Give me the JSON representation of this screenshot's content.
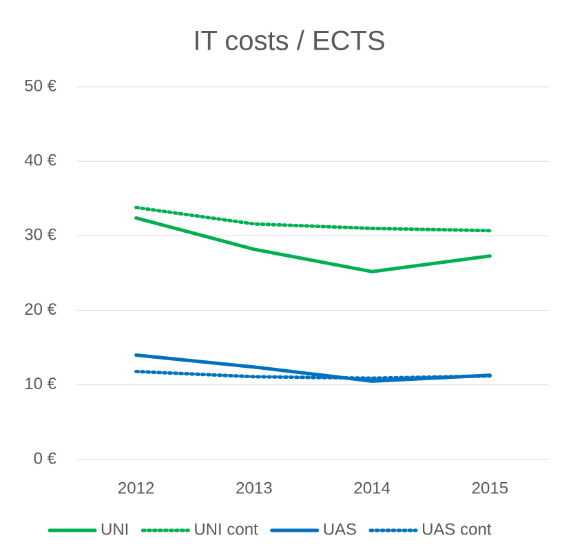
{
  "chart_data": {
    "type": "line",
    "title": "IT costs / ECTS",
    "categories": [
      "2012",
      "2013",
      "2014",
      "2015"
    ],
    "series": [
      {
        "name": "UNI",
        "color": "#00b050",
        "style": "solid",
        "values": [
          32.4,
          28.2,
          25.2,
          27.3
        ]
      },
      {
        "name": "UNI cont",
        "color": "#00b050",
        "style": "dotted",
        "values": [
          33.8,
          31.6,
          31.0,
          30.7
        ]
      },
      {
        "name": "UAS",
        "color": "#0070c0",
        "style": "solid",
        "values": [
          14.0,
          12.4,
          10.5,
          11.3
        ]
      },
      {
        "name": "UAS cont",
        "color": "#0070c0",
        "style": "dotted",
        "values": [
          11.8,
          11.1,
          10.9,
          11.2
        ]
      }
    ],
    "ylim": [
      0,
      50
    ],
    "yticks": [
      {
        "value": 0,
        "label": "0 €"
      },
      {
        "value": 10,
        "label": "10 €"
      },
      {
        "value": 20,
        "label": "20 €"
      },
      {
        "value": 30,
        "label": "30 €"
      },
      {
        "value": 40,
        "label": "40 €"
      },
      {
        "value": 50,
        "label": "50 €"
      }
    ],
    "grid": true,
    "legend": "bottom"
  }
}
